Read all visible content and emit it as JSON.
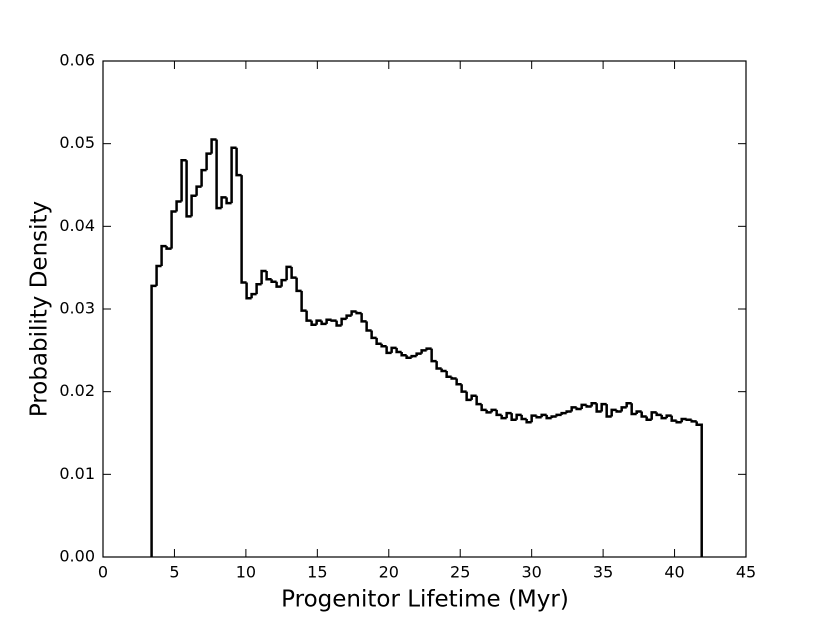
{
  "chart_data": {
    "type": "histogram",
    "histtype": "step",
    "color": "#000000",
    "xlabel": "Progenitor Lifetime (Myr)",
    "ylabel": "Probability Density",
    "xlim": [
      0,
      45
    ],
    "xticks": [
      0,
      5,
      10,
      15,
      20,
      25,
      30,
      35,
      40,
      45
    ],
    "ylim": [
      0,
      0.06
    ],
    "yticks": [
      {
        "value": 0,
        "label": "0.00"
      },
      0.01,
      0.02,
      0.03,
      0.04,
      0.05,
      0.06
    ],
    "bins": [
      3.4,
      3.75,
      4.1,
      4.45,
      4.8,
      5.15,
      5.5,
      5.85,
      6.2,
      6.55,
      6.9,
      7.25,
      7.6,
      7.95,
      8.3,
      8.65,
      9.0,
      9.35,
      9.7,
      10.05,
      10.4,
      10.75,
      11.1,
      11.45,
      11.8,
      12.15,
      12.5,
      12.85,
      13.2,
      13.55,
      13.9,
      14.25,
      14.6,
      14.95,
      15.3,
      15.65,
      16.0,
      16.35,
      16.7,
      17.05,
      17.4,
      17.75,
      18.1,
      18.45,
      18.8,
      19.15,
      19.5,
      19.85,
      20.2,
      20.55,
      20.9,
      21.25,
      21.6,
      21.95,
      22.3,
      22.65,
      23.0,
      23.35,
      23.7,
      24.05,
      24.4,
      24.75,
      25.1,
      25.45,
      25.8,
      26.15,
      26.5,
      26.85,
      27.2,
      27.55,
      27.9,
      28.25,
      28.6,
      28.95,
      29.3,
      29.65,
      30.0,
      30.35,
      30.7,
      31.05,
      31.4,
      31.75,
      32.1,
      32.45,
      32.8,
      33.15,
      33.5,
      33.85,
      34.2,
      34.55,
      34.9,
      35.25,
      35.6,
      35.95,
      36.3,
      36.65,
      37.0,
      37.35,
      37.7,
      38.05,
      38.4,
      38.75,
      39.1,
      39.45,
      39.8,
      40.15,
      40.5,
      40.85,
      41.2,
      41.55,
      41.9
    ],
    "values": [
      0.0328,
      0.0352,
      0.0376,
      0.0373,
      0.0418,
      0.043,
      0.048,
      0.0412,
      0.0437,
      0.0448,
      0.0468,
      0.0488,
      0.0505,
      0.0422,
      0.0435,
      0.0428,
      0.0495,
      0.0462,
      0.0332,
      0.0313,
      0.0318,
      0.033,
      0.0346,
      0.0336,
      0.0333,
      0.0327,
      0.0335,
      0.0351,
      0.0338,
      0.0322,
      0.0298,
      0.0286,
      0.0281,
      0.0286,
      0.0282,
      0.0287,
      0.0286,
      0.028,
      0.0288,
      0.0292,
      0.0297,
      0.0295,
      0.0285,
      0.0274,
      0.0265,
      0.0258,
      0.0255,
      0.0247,
      0.0253,
      0.0248,
      0.0244,
      0.0241,
      0.0243,
      0.0246,
      0.025,
      0.0252,
      0.0237,
      0.0228,
      0.0225,
      0.0218,
      0.0216,
      0.0209,
      0.02,
      0.019,
      0.0195,
      0.0185,
      0.0178,
      0.0175,
      0.0178,
      0.0172,
      0.0168,
      0.0174,
      0.0166,
      0.0172,
      0.0167,
      0.0163,
      0.0171,
      0.0169,
      0.0172,
      0.0168,
      0.017,
      0.0172,
      0.0174,
      0.0176,
      0.0181,
      0.0179,
      0.0184,
      0.0182,
      0.0186,
      0.0176,
      0.0185,
      0.017,
      0.0178,
      0.0176,
      0.0181,
      0.0186,
      0.0173,
      0.0176,
      0.017,
      0.0166,
      0.0175,
      0.0172,
      0.0168,
      0.0171,
      0.0165,
      0.0163,
      0.0167,
      0.0166,
      0.0164,
      0.016
    ]
  }
}
